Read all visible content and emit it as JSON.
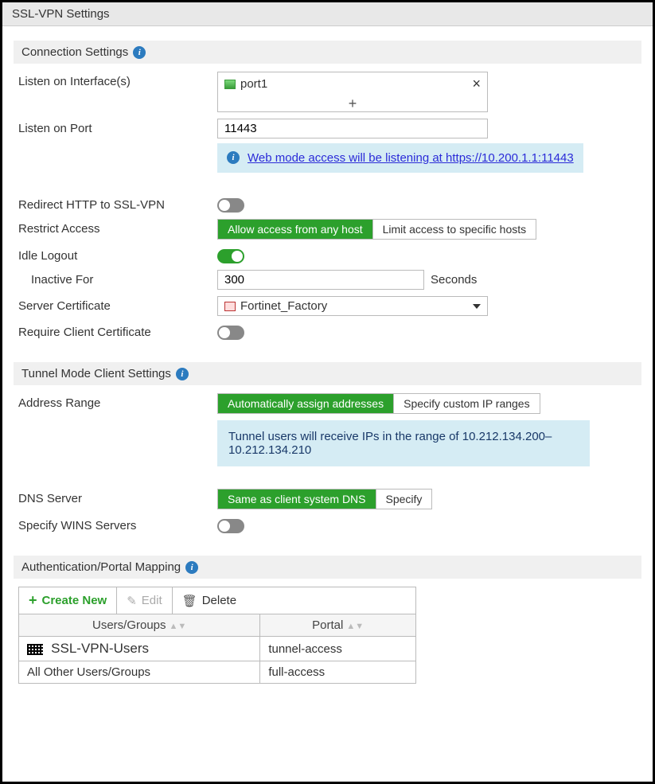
{
  "page_title": "SSL-VPN Settings",
  "colors": {
    "accent_green": "#2ca02c",
    "info_bg": "#d5ecf4",
    "info_text": "#183868",
    "link": "#2b2bd8",
    "border": "#bbbbbb",
    "header_bg": "#e8e8e8",
    "section_bg": "#f0f0f0"
  },
  "connection": {
    "section_title": "Connection Settings",
    "listen_interface_label": "Listen on Interface(s)",
    "interface_value": "port1",
    "listen_port_label": "Listen on Port",
    "listen_port_value": "11443",
    "web_mode_text": "Web mode access will be listening at ",
    "web_mode_url": "https://10.200.1.1:11443",
    "redirect_label": "Redirect HTTP to SSL-VPN",
    "redirect_on": false,
    "restrict_label": "Restrict Access",
    "restrict_options": [
      "Allow access from any host",
      "Limit access to specific hosts"
    ],
    "restrict_selected": 0,
    "idle_logout_label": "Idle Logout",
    "idle_logout_on": true,
    "inactive_label": "Inactive For",
    "inactive_value": "300",
    "inactive_suffix": "Seconds",
    "cert_label": "Server Certificate",
    "cert_value": "Fortinet_Factory",
    "require_client_cert_label": "Require Client Certificate",
    "require_client_cert_on": false
  },
  "tunnel": {
    "section_title": "Tunnel Mode Client Settings",
    "address_range_label": "Address Range",
    "address_options": [
      "Automatically assign addresses",
      "Specify custom IP ranges"
    ],
    "address_selected": 0,
    "range_text": "Tunnel users will receive IPs in the range of 10.212.134.200–10.212.134.210",
    "dns_label": "DNS Server",
    "dns_options": [
      "Same as client system DNS",
      "Specify"
    ],
    "dns_selected": 0,
    "wins_label": "Specify WINS Servers",
    "wins_on": false
  },
  "auth": {
    "section_title": "Authentication/Portal Mapping",
    "create_label": "Create New",
    "edit_label": "Edit",
    "delete_label": "Delete",
    "col_users": "Users/Groups",
    "col_portal": "Portal",
    "rows": [
      {
        "users": "SSL-VPN-Users",
        "portal": "tunnel-access",
        "has_icon": true
      },
      {
        "users": "All Other Users/Groups",
        "portal": "full-access",
        "has_icon": false
      }
    ]
  }
}
